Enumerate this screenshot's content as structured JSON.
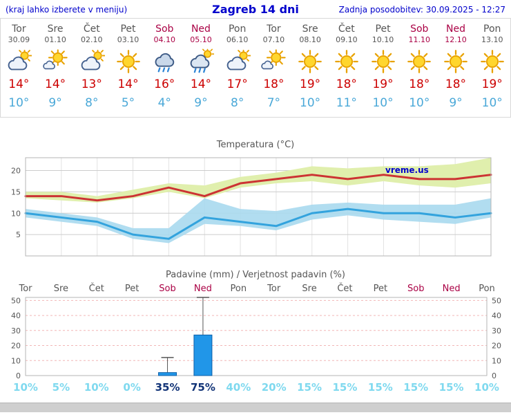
{
  "header": {
    "left": "(kraj lahko izberete v meniju)",
    "title": "Zagreb 14 dni",
    "updated": "Zadnja posodobitev: 30.09.2025 - 12:27"
  },
  "colors": {
    "accent_blue": "#0000cc",
    "weekday": "#555555",
    "weekend": "#aa0044",
    "max_temp": "#cc0000",
    "min_temp": "#4aa8d8",
    "prob_low": "#7fd9ef",
    "prob_high": "#113377"
  },
  "days": [
    {
      "name": "Tor",
      "date": "30.09",
      "icon": "cloud-sun",
      "max": "14°",
      "min": "10°",
      "weekend": false
    },
    {
      "name": "Sre",
      "date": "01.10",
      "icon": "sun-cloud",
      "max": "14°",
      "min": "9°",
      "weekend": false
    },
    {
      "name": "Čet",
      "date": "02.10",
      "icon": "cloud-sun",
      "max": "13°",
      "min": "8°",
      "weekend": false
    },
    {
      "name": "Pet",
      "date": "03.10",
      "icon": "sunny",
      "max": "14°",
      "min": "5°",
      "weekend": false
    },
    {
      "name": "Sob",
      "date": "04.10",
      "icon": "rain",
      "max": "16°",
      "min": "4°",
      "weekend": true
    },
    {
      "name": "Ned",
      "date": "05.10",
      "icon": "sun-rain",
      "max": "14°",
      "min": "9°",
      "weekend": true
    },
    {
      "name": "Pon",
      "date": "06.10",
      "icon": "cloud-sun",
      "max": "17°",
      "min": "8°",
      "weekend": false
    },
    {
      "name": "Tor",
      "date": "07.10",
      "icon": "sun-cloud",
      "max": "18°",
      "min": "7°",
      "weekend": false
    },
    {
      "name": "Sre",
      "date": "08.10",
      "icon": "sunny",
      "max": "19°",
      "min": "10°",
      "weekend": false
    },
    {
      "name": "Čet",
      "date": "09.10",
      "icon": "sunny",
      "max": "18°",
      "min": "11°",
      "weekend": false
    },
    {
      "name": "Pet",
      "date": "10.10",
      "icon": "sunny",
      "max": "19°",
      "min": "10°",
      "weekend": false
    },
    {
      "name": "Sob",
      "date": "11.10",
      "icon": "sunny",
      "max": "18°",
      "min": "10°",
      "weekend": true
    },
    {
      "name": "Ned",
      "date": "12.10",
      "icon": "sunny",
      "max": "18°",
      "min": "9°",
      "weekend": true
    },
    {
      "name": "Pon",
      "date": "13.10",
      "icon": "sunny",
      "max": "19°",
      "min": "10°",
      "weekend": false
    }
  ],
  "chart_data": [
    {
      "type": "line",
      "title": "Temperatura (°C)",
      "watermark": "vreme.us",
      "categories": [
        "Tor 30.09",
        "Sre 01.10",
        "Čet 02.10",
        "Pet 03.10",
        "Sob 04.10",
        "Ned 05.10",
        "Pon 06.10",
        "Tor 07.10",
        "Sre 08.10",
        "Čet 09.10",
        "Pet 10.10",
        "Sob 11.10",
        "Ned 12.10",
        "Pon 13.10"
      ],
      "ylim": [
        0,
        23
      ],
      "yticks": [
        5,
        10,
        15,
        20
      ],
      "grid": true,
      "series": [
        {
          "name": "max_temp",
          "color": "#cc3333",
          "values": [
            14,
            14,
            13,
            14,
            16,
            14,
            17,
            18,
            19,
            18,
            19,
            18,
            18,
            19
          ]
        },
        {
          "name": "min_temp",
          "color": "#33a3dd",
          "values": [
            10,
            9,
            8,
            5,
            4,
            9,
            8,
            7,
            10,
            11,
            10,
            10,
            9,
            10
          ]
        },
        {
          "name": "max_band_upper",
          "values": [
            15,
            15,
            14,
            15.5,
            17,
            16.5,
            18.5,
            19.5,
            21,
            20.5,
            21,
            21,
            21.5,
            23
          ]
        },
        {
          "name": "max_band_lower",
          "values": [
            13.5,
            13,
            12.5,
            13.5,
            15,
            13.5,
            16,
            17,
            17.5,
            16.5,
            17.5,
            16.5,
            16,
            17
          ]
        },
        {
          "name": "min_band_upper",
          "values": [
            11,
            10,
            9,
            6.5,
            6.5,
            13.5,
            11,
            10.5,
            12,
            12.5,
            12,
            12,
            12,
            13.5
          ]
        },
        {
          "name": "min_band_lower",
          "values": [
            9,
            8,
            7,
            4,
            3,
            7.5,
            7,
            6,
            8.5,
            9.5,
            8.5,
            8,
            7.5,
            9
          ]
        }
      ],
      "band_colors": {
        "max": "#e0efad",
        "min": "#a8d9ee"
      }
    },
    {
      "type": "bar",
      "title": "Padavine (mm) / Verjetnost padavin (%)",
      "categories": [
        "Tor",
        "Sre",
        "Čet",
        "Pet",
        "Sob",
        "Ned",
        "Pon",
        "Tor",
        "Sre",
        "Čet",
        "Pet",
        "Sob",
        "Ned",
        "Pon"
      ],
      "weekend_indices": [
        4,
        5,
        11,
        12
      ],
      "precip_mm": [
        0,
        0,
        0,
        0,
        2,
        27,
        0,
        0,
        0,
        0,
        0,
        0,
        0,
        0
      ],
      "precip_max_mm": [
        0,
        0,
        0,
        0,
        12,
        52,
        0,
        0,
        0,
        0,
        0,
        0,
        0,
        0
      ],
      "probability_pct": [
        10,
        5,
        10,
        0,
        35,
        75,
        40,
        20,
        15,
        15,
        15,
        15,
        15,
        10
      ],
      "probability_highlight_indices": [
        4,
        5
      ],
      "ylim": [
        0,
        52
      ],
      "yticks": [
        0,
        10,
        20,
        30,
        40,
        50
      ],
      "bar_color": "#2196e8",
      "bar_border": "#0d5fa8",
      "grid_color": "#f2b6b6"
    }
  ]
}
